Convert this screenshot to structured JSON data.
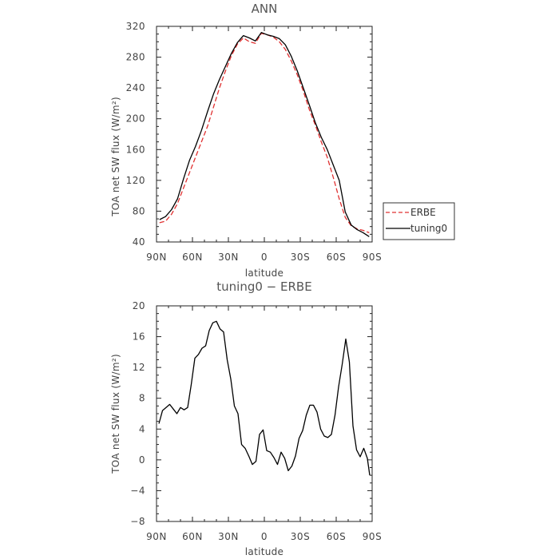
{
  "chart_data": [
    {
      "type": "line",
      "title": "ANN",
      "xlabel": "latitude",
      "ylabel": "TOA net SW flux (W/m²)",
      "xlim": [
        90,
        -90
      ],
      "ylim": [
        40,
        320
      ],
      "xticks": [
        90,
        60,
        30,
        0,
        -30,
        -60,
        -90
      ],
      "xtick_labels": [
        "90N",
        "60N",
        "30N",
        "0",
        "30S",
        "60S",
        "90S"
      ],
      "yticks": [
        40,
        80,
        120,
        160,
        200,
        240,
        280,
        320
      ],
      "ytick_labels": [
        "40",
        "80",
        "120",
        "160",
        "200",
        "240",
        "280",
        "320"
      ],
      "grid": false,
      "legend_position": "right, outside",
      "series": [
        {
          "name": "ERBE",
          "color": "#e03030",
          "dash": "dashed",
          "x": [
            87.5,
            82.5,
            77.5,
            72.5,
            67.5,
            62.5,
            57.5,
            52.5,
            47.5,
            42.5,
            37.5,
            32.5,
            27.5,
            22.5,
            17.5,
            12.5,
            7.5,
            2.5,
            -2.5,
            -7.5,
            -12.5,
            -17.5,
            -22.5,
            -27.5,
            -32.5,
            -37.5,
            -42.5,
            -47.5,
            -52.5,
            -57.5,
            -62.5,
            -67.5,
            -72.5,
            -77.5,
            -82.5,
            -87.5
          ],
          "values": [
            65,
            67,
            76,
            90,
            110,
            130,
            150,
            170,
            190,
            215,
            240,
            262,
            282,
            297,
            305,
            300,
            298,
            311,
            309,
            306,
            300,
            290,
            275,
            257,
            236,
            212,
            192,
            170,
            150,
            124,
            96,
            72,
            61,
            57,
            55,
            52
          ]
        },
        {
          "name": "tuning0",
          "color": "#000000",
          "dash": "solid",
          "x": [
            87.5,
            82.5,
            77.5,
            72.5,
            67.5,
            62.5,
            57.5,
            52.5,
            47.5,
            42.5,
            37.5,
            32.5,
            27.5,
            22.5,
            17.5,
            12.5,
            7.5,
            2.5,
            -2.5,
            -7.5,
            -12.5,
            -17.5,
            -22.5,
            -27.5,
            -32.5,
            -37.5,
            -42.5,
            -47.5,
            -52.5,
            -57.5,
            -62.5,
            -67.5,
            -72.5,
            -77.5,
            -82.5,
            -87.5
          ],
          "values": [
            69,
            73,
            82,
            96,
            122,
            146,
            164,
            185,
            209,
            232,
            251,
            268,
            285,
            299,
            308,
            305,
            301,
            312,
            309,
            307,
            304,
            296,
            281,
            262,
            240,
            218,
            195,
            176,
            160,
            140,
            120,
            79,
            62,
            56,
            52,
            47
          ]
        }
      ]
    },
    {
      "type": "line",
      "title": "tuning0 − ERBE",
      "xlabel": "latitude",
      "ylabel": "TOA net SW flux (W/m²)",
      "xlim": [
        90,
        -90
      ],
      "ylim": [
        -8,
        20
      ],
      "xticks": [
        90,
        60,
        30,
        0,
        -30,
        -60,
        -90
      ],
      "xtick_labels": [
        "90N",
        "60N",
        "30N",
        "0",
        "30S",
        "60S",
        "90S"
      ],
      "yticks": [
        -8,
        -4,
        0,
        4,
        8,
        12,
        16,
        20
      ],
      "ytick_labels": [
        "−8",
        "−4",
        "0",
        "4",
        "8",
        "12",
        "16",
        "20"
      ],
      "grid": false,
      "series": [
        {
          "color": "#000000",
          "dash": "solid",
          "x": [
            88,
            85,
            82,
            79,
            76,
            73,
            70,
            67,
            64,
            61,
            58,
            55,
            52,
            49,
            46,
            43,
            40,
            37,
            34,
            31,
            28,
            25,
            22,
            19,
            16,
            13,
            10,
            7,
            4,
            1,
            -2,
            -5,
            -8,
            -11,
            -14,
            -17,
            -20,
            -23,
            -26,
            -29,
            -32,
            -35,
            -38,
            -41,
            -44,
            -47,
            -50,
            -53,
            -56,
            -59,
            -62,
            -65,
            -68,
            -71,
            -74,
            -77,
            -80,
            -83,
            -86,
            -88
          ],
          "values": [
            4.7,
            6.4,
            6.8,
            7.2,
            6.6,
            6.0,
            6.8,
            6.5,
            6.8,
            9.8,
            13.2,
            13.7,
            14.5,
            14.8,
            16.8,
            17.8,
            18.0,
            17.0,
            16.6,
            13.0,
            10.5,
            7.0,
            6.0,
            2.0,
            1.5,
            0.5,
            -0.6,
            -0.2,
            3.3,
            3.9,
            1.2,
            1.0,
            0.3,
            -0.6,
            1.0,
            0.2,
            -1.4,
            -0.8,
            0.5,
            2.8,
            3.8,
            5.8,
            7.1,
            7.1,
            6.2,
            4.0,
            3.1,
            2.9,
            3.3,
            5.8,
            9.5,
            12.4,
            15.7,
            12.7,
            4.4,
            1.3,
            0.4,
            1.5,
            0.2,
            -2.0
          ]
        }
      ]
    }
  ],
  "legend": {
    "entries": [
      {
        "label": "ERBE",
        "color": "#e03030",
        "dash": "dashed"
      },
      {
        "label": "tuning0",
        "color": "#000000",
        "dash": "solid"
      }
    ]
  }
}
